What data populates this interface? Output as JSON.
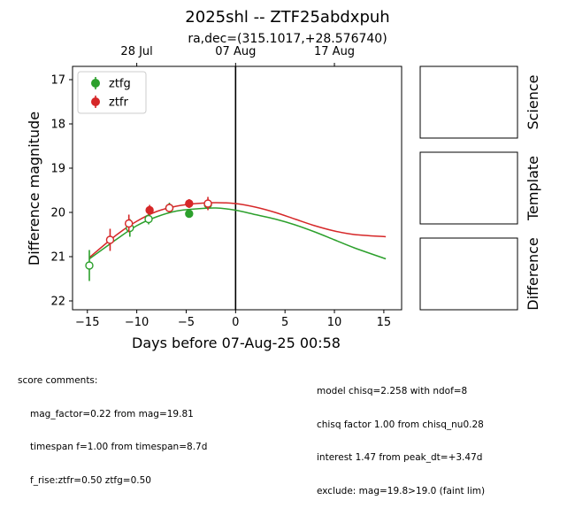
{
  "chart_data": {
    "type": "scatter",
    "title": "2025shl -- ZTF25abdxpuh",
    "subtitle": "ra,dec=(315.1017,+28.576740)",
    "xlabel": "Days before 07-Aug-25 00:58",
    "ylabel": "Difference magnitude",
    "xlim": [
      -16.5,
      16.8
    ],
    "ylim": [
      22.2,
      16.7
    ],
    "y_inverted": true,
    "x_ticks": [
      -15,
      -10,
      -5,
      0,
      5,
      10,
      15
    ],
    "x_tick_labels": [
      "−15",
      "−10",
      "−5",
      "0",
      "5",
      "10",
      "15"
    ],
    "y_ticks": [
      17,
      18,
      19,
      20,
      21,
      22
    ],
    "y_tick_labels": [
      "17",
      "18",
      "19",
      "20",
      "21",
      "22"
    ],
    "top_axis": {
      "ticks": [
        -10,
        0,
        10
      ],
      "labels": [
        "28 Jul",
        "07 Aug",
        "17 Aug"
      ]
    },
    "vertical_line_x": 0,
    "legend_position": "upper-left",
    "series": [
      {
        "name": "ztfg",
        "color": "#2ca02c",
        "points": [
          {
            "x": -14.8,
            "y": 21.2,
            "yerr": 0.35,
            "filled": false
          },
          {
            "x": -10.7,
            "y": 20.35,
            "yerr": 0.2,
            "filled": false
          },
          {
            "x": -8.8,
            "y": 20.15,
            "yerr": 0.12,
            "filled": false
          },
          {
            "x": -6.7,
            "y": 19.9,
            "yerr": 0.12,
            "filled": false
          },
          {
            "x": -4.7,
            "y": 20.03,
            "yerr": 0.08,
            "filled": true
          },
          {
            "x": -2.8,
            "y": 19.82,
            "yerr": 0.1,
            "filled": false
          }
        ],
        "model": {
          "x": [
            -14.8,
            -12,
            -10,
            -8,
            -6,
            -4,
            -2,
            0,
            2,
            4,
            6,
            8,
            10,
            12,
            15.2
          ],
          "y": [
            21.05,
            20.6,
            20.3,
            20.1,
            19.97,
            19.92,
            19.9,
            19.95,
            20.05,
            20.15,
            20.28,
            20.44,
            20.62,
            20.8,
            21.05
          ]
        }
      },
      {
        "name": "ztfr",
        "color": "#d62728",
        "points": [
          {
            "x": -12.7,
            "y": 20.62,
            "yerr": 0.25,
            "filled": false
          },
          {
            "x": -10.8,
            "y": 20.25,
            "yerr": 0.2,
            "filled": false
          },
          {
            "x": -8.7,
            "y": 19.95,
            "yerr": 0.12,
            "filled": true
          },
          {
            "x": -6.7,
            "y": 19.9,
            "yerr": 0.1,
            "filled": false
          },
          {
            "x": -4.7,
            "y": 19.8,
            "yerr": 0.1,
            "filled": true
          },
          {
            "x": -2.8,
            "y": 19.8,
            "yerr": 0.15,
            "filled": false
          }
        ],
        "model": {
          "x": [
            -14.8,
            -12,
            -10,
            -8,
            -6,
            -4,
            -2,
            0,
            2,
            4,
            6,
            8,
            10,
            12,
            15.2
          ],
          "y": [
            21.02,
            20.5,
            20.2,
            19.98,
            19.86,
            19.8,
            19.78,
            19.8,
            19.88,
            20.0,
            20.15,
            20.3,
            20.42,
            20.5,
            20.55
          ]
        }
      }
    ],
    "panels": [
      "Science",
      "Template",
      "Difference"
    ]
  },
  "comments_left": {
    "heading": "score comments:",
    "lines": [
      "mag_factor=0.22 from mag=19.81",
      "timespan f=1.00 from timespan=8.7d",
      "f_rise:ztfr=0.50 ztfg=0.50"
    ]
  },
  "comments_right": {
    "lines": [
      "model chisq=2.258 with ndof=8",
      "chisq factor 1.00 from chisq_nu0.28",
      "interest 1.47 from peak_dt=+3.47d",
      "exclude: mag=19.8>19.0 (faint lim)"
    ]
  }
}
